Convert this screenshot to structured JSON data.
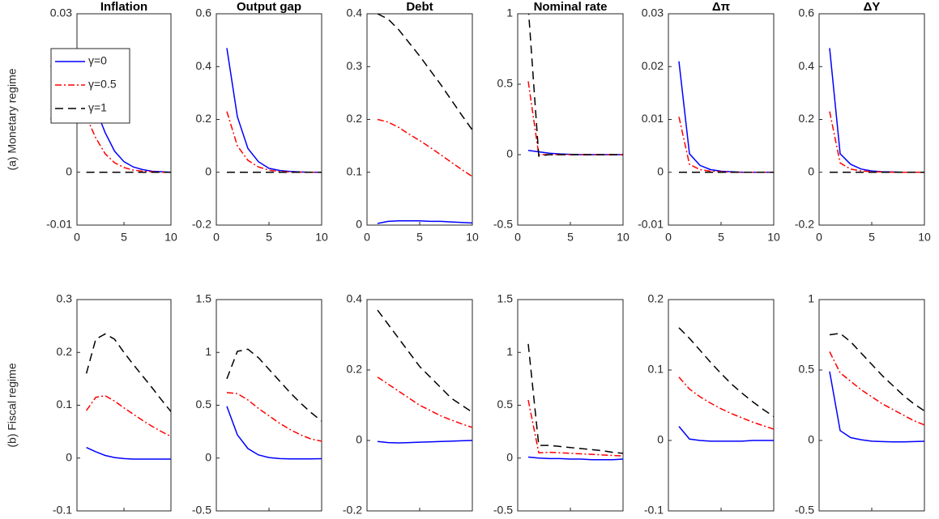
{
  "chart_data": [
    {
      "type": "line",
      "title": "Inflation",
      "ylabel": "(a) Monetary regime",
      "legend": "upper left",
      "x": [
        1,
        2,
        3,
        4,
        5,
        6,
        7,
        8,
        9,
        10
      ],
      "xlim": [
        0,
        10
      ],
      "xticks": [
        0,
        5,
        10
      ],
      "ylim": [
        -0.01,
        0.03
      ],
      "yticks": [
        -0.01,
        0,
        0.01,
        0.02,
        0.03
      ],
      "series": [
        {
          "name": "γ=0",
          "color": "#0000ff",
          "line_style": "solid",
          "values": [
            0.021,
            0.012,
            0.0075,
            0.004,
            0.002,
            0.001,
            0.0005,
            0.0002,
            0.0001,
            0
          ]
        },
        {
          "name": "γ=0.5",
          "color": "#ff0000",
          "line_style": "dashdot",
          "values": [
            0.0105,
            0.0065,
            0.0035,
            0.0018,
            0.0009,
            0.0004,
            0.0002,
            0.0001,
            0,
            0
          ]
        },
        {
          "name": "γ=1",
          "color": "#000000",
          "line_style": "dashed",
          "values": [
            0,
            0,
            0,
            0,
            0,
            0,
            0,
            0,
            0,
            0
          ]
        }
      ]
    },
    {
      "type": "line",
      "title": "Output gap",
      "x": [
        1,
        2,
        3,
        4,
        5,
        6,
        7,
        8,
        9,
        10
      ],
      "xlim": [
        0,
        10
      ],
      "xticks": [
        0,
        5,
        10
      ],
      "ylim": [
        -0.2,
        0.6
      ],
      "yticks": [
        -0.2,
        0,
        0.2,
        0.4,
        0.6
      ],
      "series": [
        {
          "color": "#0000ff",
          "line_style": "solid",
          "values": [
            0.47,
            0.21,
            0.09,
            0.04,
            0.015,
            0.007,
            0.003,
            0.001,
            0,
            0
          ]
        },
        {
          "color": "#ff0000",
          "line_style": "dashdot",
          "values": [
            0.23,
            0.1,
            0.045,
            0.02,
            0.008,
            0.003,
            0.001,
            0,
            0,
            0
          ]
        },
        {
          "color": "#000000",
          "line_style": "dashed",
          "values": [
            0,
            0,
            0,
            0,
            0,
            0,
            0,
            0,
            0,
            0
          ]
        }
      ]
    },
    {
      "type": "line",
      "title": "Debt",
      "x": [
        1,
        2,
        3,
        4,
        5,
        6,
        7,
        8,
        9,
        10
      ],
      "xlim": [
        0,
        10
      ],
      "xticks": [
        0,
        5,
        10
      ],
      "ylim": [
        0,
        0.4
      ],
      "yticks": [
        0,
        0.1,
        0.2,
        0.3,
        0.4
      ],
      "series": [
        {
          "color": "#0000ff",
          "line_style": "solid",
          "values": [
            0.003,
            0.007,
            0.008,
            0.008,
            0.008,
            0.007,
            0.007,
            0.006,
            0.005,
            0.004
          ]
        },
        {
          "color": "#ff0000",
          "line_style": "dashdot",
          "values": [
            0.2,
            0.195,
            0.185,
            0.172,
            0.16,
            0.147,
            0.133,
            0.119,
            0.105,
            0.092
          ]
        },
        {
          "color": "#000000",
          "line_style": "dashed",
          "values": [
            0.4,
            0.39,
            0.37,
            0.345,
            0.32,
            0.293,
            0.266,
            0.237,
            0.208,
            0.18
          ]
        }
      ]
    },
    {
      "type": "line",
      "title": "Nominal rate",
      "x": [
        1,
        2,
        3,
        4,
        5,
        6,
        7,
        8,
        9,
        10
      ],
      "xlim": [
        0,
        10
      ],
      "xticks": [
        0,
        5,
        10
      ],
      "ylim": [
        -0.5,
        1
      ],
      "yticks": [
        -0.5,
        0,
        0.5,
        1
      ],
      "series": [
        {
          "color": "#0000ff",
          "line_style": "solid",
          "values": [
            0.03,
            0.02,
            0.01,
            0.005,
            0.002,
            0,
            0,
            0,
            0,
            0
          ]
        },
        {
          "color": "#ff0000",
          "line_style": "dashdot",
          "values": [
            0.52,
            0,
            0,
            0,
            0,
            0,
            0,
            0,
            0,
            0
          ]
        },
        {
          "color": "#000000",
          "line_style": "dashed",
          "values": [
            1.05,
            -0.01,
            0,
            0,
            0,
            0,
            0,
            0,
            0,
            0
          ]
        }
      ]
    },
    {
      "type": "line",
      "title": "Δπ",
      "x": [
        1,
        2,
        3,
        4,
        5,
        6,
        7,
        8,
        9,
        10
      ],
      "xlim": [
        0,
        10
      ],
      "xticks": [
        0,
        5,
        10
      ],
      "ylim": [
        -0.01,
        0.03
      ],
      "yticks": [
        -0.01,
        0,
        0.01,
        0.02,
        0.03
      ],
      "series": [
        {
          "color": "#0000ff",
          "line_style": "solid",
          "values": [
            0.021,
            0.0035,
            0.0013,
            0.0005,
            0.0002,
            0.0001,
            0,
            0,
            0,
            0
          ]
        },
        {
          "color": "#ff0000",
          "line_style": "dashdot",
          "values": [
            0.0105,
            0.0015,
            0.0005,
            0.0002,
            0.0001,
            0,
            0,
            0,
            0,
            0
          ]
        },
        {
          "color": "#000000",
          "line_style": "dashed",
          "values": [
            0,
            0,
            0,
            0,
            0,
            0,
            0,
            0,
            0,
            0
          ]
        }
      ]
    },
    {
      "type": "line",
      "title": "ΔY",
      "x": [
        1,
        2,
        3,
        4,
        5,
        6,
        7,
        8,
        9,
        10
      ],
      "xlim": [
        0,
        10
      ],
      "xticks": [
        0,
        5,
        10
      ],
      "ylim": [
        -0.2,
        0.6
      ],
      "yticks": [
        -0.2,
        0,
        0.2,
        0.4,
        0.6
      ],
      "series": [
        {
          "color": "#0000ff",
          "line_style": "solid",
          "values": [
            0.47,
            0.07,
            0.03,
            0.012,
            0.005,
            0.002,
            0.001,
            0,
            0,
            0
          ]
        },
        {
          "color": "#ff0000",
          "line_style": "dashdot",
          "values": [
            0.23,
            0.035,
            0.012,
            0.005,
            0.002,
            0.001,
            0,
            0,
            0,
            0
          ]
        },
        {
          "color": "#000000",
          "line_style": "dashed",
          "values": [
            0,
            0,
            0,
            0,
            0,
            0,
            0,
            0,
            0,
            0
          ]
        }
      ]
    },
    {
      "type": "line",
      "ylabel": "(b) Fiscal regime",
      "x": [
        1,
        2,
        3,
        4,
        5,
        6,
        7,
        8,
        9,
        10
      ],
      "xlim": [
        0,
        10
      ],
      "xticks": [
        0,
        5,
        10
      ],
      "ylim": [
        -0.1,
        0.3
      ],
      "yticks": [
        -0.1,
        0,
        0.1,
        0.2,
        0.3
      ],
      "series": [
        {
          "color": "#0000ff",
          "line_style": "solid",
          "values": [
            0.02,
            0.012,
            0.005,
            0.001,
            -0.001,
            -0.002,
            -0.002,
            -0.002,
            -0.002,
            -0.002
          ]
        },
        {
          "color": "#ff0000",
          "line_style": "dashdot",
          "values": [
            0.09,
            0.115,
            0.118,
            0.108,
            0.095,
            0.083,
            0.071,
            0.06,
            0.05,
            0.041
          ]
        },
        {
          "color": "#000000",
          "line_style": "dashed",
          "values": [
            0.16,
            0.225,
            0.235,
            0.225,
            0.2,
            0.177,
            0.155,
            0.133,
            0.11,
            0.088
          ]
        }
      ]
    },
    {
      "type": "line",
      "x": [
        1,
        2,
        3,
        4,
        5,
        6,
        7,
        8,
        9,
        10
      ],
      "xlim": [
        0,
        10
      ],
      "xticks": [
        0,
        5,
        10
      ],
      "ylim": [
        -0.5,
        1.5
      ],
      "yticks": [
        -0.5,
        0,
        0.5,
        1,
        1.5
      ],
      "series": [
        {
          "color": "#0000ff",
          "line_style": "solid",
          "values": [
            0.49,
            0.22,
            0.09,
            0.03,
            0.005,
            -0.005,
            -0.008,
            -0.008,
            -0.008,
            -0.006
          ]
        },
        {
          "color": "#ff0000",
          "line_style": "dashdot",
          "values": [
            0.62,
            0.61,
            0.55,
            0.47,
            0.4,
            0.33,
            0.27,
            0.22,
            0.18,
            0.16
          ]
        },
        {
          "color": "#000000",
          "line_style": "dashed",
          "values": [
            0.75,
            1.01,
            1.03,
            0.95,
            0.84,
            0.73,
            0.62,
            0.52,
            0.43,
            0.35
          ]
        }
      ]
    },
    {
      "type": "line",
      "x": [
        1,
        2,
        3,
        4,
        5,
        6,
        7,
        8,
        9,
        10
      ],
      "xlim": [
        0,
        10
      ],
      "xticks": [
        0,
        5,
        10
      ],
      "ylim": [
        -0.2,
        0.4
      ],
      "yticks": [
        -0.2,
        0,
        0.2,
        0.4
      ],
      "series": [
        {
          "color": "#0000ff",
          "line_style": "solid",
          "values": [
            -0.003,
            -0.006,
            -0.007,
            -0.006,
            -0.005,
            -0.004,
            -0.003,
            -0.002,
            -0.001,
            0
          ]
        },
        {
          "color": "#ff0000",
          "line_style": "dashdot",
          "values": [
            0.18,
            0.16,
            0.14,
            0.12,
            0.1,
            0.085,
            0.07,
            0.058,
            0.047,
            0.037
          ]
        },
        {
          "color": "#000000",
          "line_style": "dashed",
          "values": [
            0.37,
            0.33,
            0.29,
            0.25,
            0.21,
            0.18,
            0.15,
            0.12,
            0.1,
            0.08
          ]
        }
      ]
    },
    {
      "type": "line",
      "x": [
        1,
        2,
        3,
        4,
        5,
        6,
        7,
        8,
        9,
        10
      ],
      "xlim": [
        0,
        10
      ],
      "xticks": [
        0,
        5,
        10
      ],
      "ylim": [
        -0.5,
        1.5
      ],
      "yticks": [
        -0.5,
        0,
        0.5,
        1,
        1.5
      ],
      "series": [
        {
          "color": "#0000ff",
          "line_style": "solid",
          "values": [
            0.01,
            0,
            -0.005,
            -0.005,
            -0.01,
            -0.01,
            -0.015,
            -0.015,
            -0.015,
            -0.01
          ]
        },
        {
          "color": "#ff0000",
          "line_style": "dashdot",
          "values": [
            0.55,
            0.05,
            0.055,
            0.05,
            0.045,
            0.04,
            0.035,
            0.03,
            0.025,
            0.02
          ]
        },
        {
          "color": "#000000",
          "line_style": "dashed",
          "values": [
            1.08,
            0.12,
            0.12,
            0.11,
            0.1,
            0.09,
            0.08,
            0.07,
            0.055,
            0.045
          ]
        }
      ]
    },
    {
      "type": "line",
      "x": [
        1,
        2,
        3,
        4,
        5,
        6,
        7,
        8,
        9,
        10
      ],
      "xlim": [
        0,
        10
      ],
      "xticks": [
        0,
        5,
        10
      ],
      "ylim": [
        -0.1,
        0.2
      ],
      "yticks": [
        -0.1,
        0,
        0.1,
        0.2
      ],
      "series": [
        {
          "color": "#0000ff",
          "line_style": "solid",
          "values": [
            0.02,
            0.002,
            0,
            -0.001,
            -0.001,
            -0.001,
            -0.001,
            0,
            0,
            0
          ]
        },
        {
          "color": "#ff0000",
          "line_style": "dashdot",
          "values": [
            0.09,
            0.073,
            0.062,
            0.053,
            0.045,
            0.038,
            0.032,
            0.026,
            0.021,
            0.016
          ]
        },
        {
          "color": "#000000",
          "line_style": "dashed",
          "values": [
            0.16,
            0.145,
            0.128,
            0.111,
            0.095,
            0.08,
            0.067,
            0.055,
            0.044,
            0.034
          ]
        }
      ]
    },
    {
      "type": "line",
      "x": [
        1,
        2,
        3,
        4,
        5,
        6,
        7,
        8,
        9,
        10
      ],
      "xlim": [
        0,
        10
      ],
      "xticks": [
        0,
        5,
        10
      ],
      "ylim": [
        -0.5,
        1
      ],
      "yticks": [
        -0.5,
        0,
        0.5,
        1
      ],
      "series": [
        {
          "color": "#0000ff",
          "line_style": "solid",
          "values": [
            0.49,
            0.07,
            0.02,
            0.005,
            -0.005,
            -0.008,
            -0.01,
            -0.01,
            -0.008,
            -0.006
          ]
        },
        {
          "color": "#ff0000",
          "line_style": "dashdot",
          "values": [
            0.63,
            0.48,
            0.42,
            0.36,
            0.31,
            0.26,
            0.22,
            0.18,
            0.14,
            0.11
          ]
        },
        {
          "color": "#000000",
          "line_style": "dashed",
          "values": [
            0.75,
            0.76,
            0.7,
            0.62,
            0.54,
            0.46,
            0.39,
            0.32,
            0.26,
            0.21
          ]
        }
      ]
    }
  ]
}
